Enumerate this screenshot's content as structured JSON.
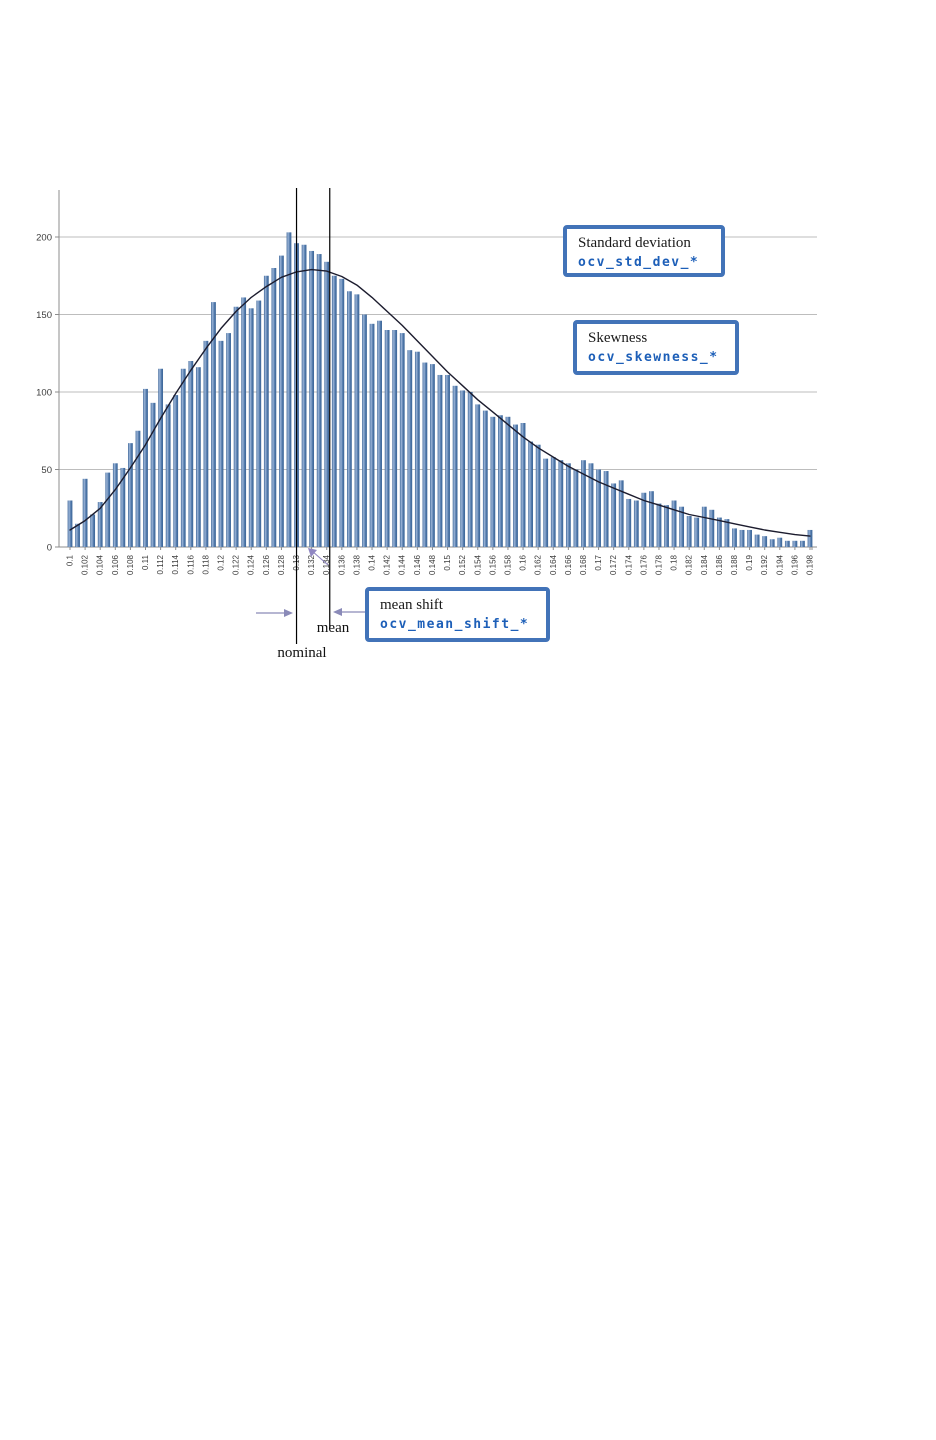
{
  "chart_data": {
    "type": "bar",
    "title": "",
    "xlabel": "",
    "ylabel": "",
    "x_min": 0.1,
    "x_max": 0.198,
    "x_step": 0.001,
    "ylim": [
      0,
      200
    ],
    "grid": true,
    "y_ticks": [
      0,
      50,
      100,
      150,
      200
    ],
    "y_tick_labels": [
      "0",
      "50",
      "100",
      "150",
      "200"
    ],
    "x_tick_labels": [
      "0.1",
      "0.102",
      "0.104",
      "0.106",
      "0.108",
      "0.11",
      "0.112",
      "0.114",
      "0.116",
      "0.118",
      "0.12",
      "0.122",
      "0.124",
      "0.126",
      "0.128",
      "0.13",
      "0.132",
      "0.134",
      "0.136",
      "0.138",
      "0.14",
      "0.142",
      "0.144",
      "0.146",
      "0.148",
      "0.15",
      "0.152",
      "0.154",
      "0.156",
      "0.158",
      "0.16",
      "0.162",
      "0.164",
      "0.166",
      "0.168",
      "0.17",
      "0.172",
      "0.174",
      "0.176",
      "0.178",
      "0.18",
      "0.182",
      "0.184",
      "0.186",
      "0.188",
      "0.19",
      "0.192",
      "0.194",
      "0.196",
      "0.198"
    ],
    "values": [
      30,
      15,
      44,
      21,
      29,
      48,
      54,
      51,
      67,
      75,
      102,
      93,
      115,
      92,
      98,
      115,
      120,
      116,
      133,
      158,
      133,
      138,
      155,
      161,
      154,
      159,
      175,
      180,
      188,
      203,
      196,
      195,
      191,
      189,
      184,
      175,
      173,
      165,
      163,
      150,
      144,
      146,
      140,
      140,
      138,
      127,
      126,
      119,
      118,
      111,
      111,
      104,
      101,
      100,
      92,
      88,
      84,
      85,
      84,
      79,
      80,
      68,
      66,
      57,
      58,
      56,
      54,
      50,
      56,
      54,
      50,
      49,
      41,
      43,
      31,
      30,
      35,
      36,
      28,
      27,
      30,
      26,
      20,
      19,
      26,
      24,
      19,
      18,
      12,
      11,
      11,
      8,
      7,
      5,
      6,
      4,
      4,
      4,
      11
    ],
    "fit_curve": {
      "x": [
        0.1,
        0.102,
        0.104,
        0.106,
        0.108,
        0.11,
        0.112,
        0.114,
        0.116,
        0.118,
        0.12,
        0.122,
        0.124,
        0.126,
        0.128,
        0.13,
        0.132,
        0.134,
        0.136,
        0.138,
        0.14,
        0.142,
        0.144,
        0.146,
        0.148,
        0.15,
        0.152,
        0.154,
        0.156,
        0.158,
        0.16,
        0.162,
        0.164,
        0.166,
        0.168,
        0.17,
        0.172,
        0.174,
        0.176,
        0.178,
        0.18,
        0.182,
        0.184,
        0.186,
        0.188,
        0.19,
        0.192,
        0.194,
        0.196,
        0.198
      ],
      "y": [
        11,
        17,
        25,
        37,
        51,
        66,
        83,
        99,
        114,
        128,
        141,
        152,
        161,
        168,
        174,
        177.5,
        179,
        178,
        174.5,
        169,
        161,
        152,
        143,
        133,
        123,
        113,
        104,
        95,
        87,
        79,
        71,
        64,
        58,
        52,
        47,
        42,
        38,
        34,
        30,
        27,
        24,
        21,
        19,
        17,
        15,
        13,
        11,
        9.5,
        8,
        7
      ]
    },
    "ref_lines": [
      {
        "label": "nominal",
        "x": 0.13
      },
      {
        "label": "mean",
        "x": 0.1344
      }
    ],
    "legend_position": "none"
  },
  "annotations": {
    "std_dev": {
      "title": "Standard deviation",
      "code": "ocv_std_dev_*"
    },
    "skewness": {
      "title": "Skewness",
      "code": "ocv_skewness_*"
    },
    "mean_shift": {
      "title": "mean shift",
      "code": "ocv_mean_shift_*"
    },
    "mean_label": "mean",
    "nominal_label": "nominal"
  },
  "colors": {
    "bar_edge": "#3c6597",
    "bar_light": "#9cb5d8",
    "bar_mid": "#4d76a8",
    "curve": "#1c1c2e",
    "gridline": "#bdbdbd",
    "axis_line": "#8c8c8c",
    "tick_text": "#3c3c3c",
    "ref_line": "#000000",
    "box_border": "#4273b8",
    "code_text": "#1d5fb8",
    "shift_arrow": "#8a8ab8",
    "mini_arrow": "#8f86c2"
  }
}
